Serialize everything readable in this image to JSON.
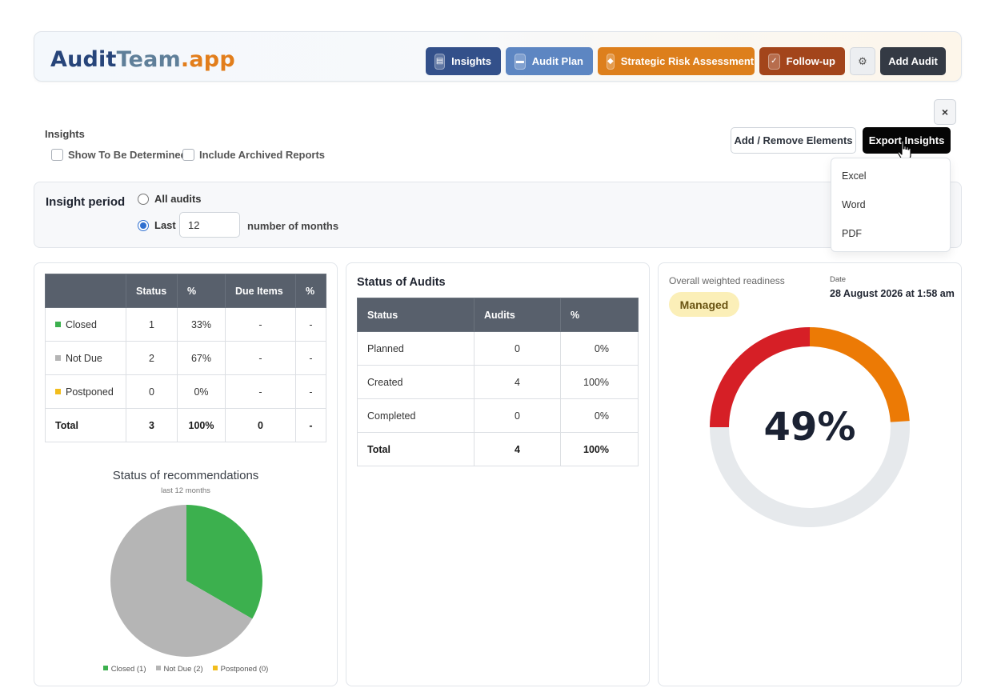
{
  "header": {
    "logo": {
      "part1": "Audit",
      "part2": "Team",
      "part3": ".app"
    },
    "nav": [
      {
        "label": "Insights",
        "icon": "chart-icon",
        "color": "#33508a"
      },
      {
        "label": "Audit Plan",
        "icon": "calendar-icon",
        "color": "#5d86c2"
      },
      {
        "label": "Strategic Risk Assessment",
        "icon": "diamond-icon",
        "color": "#dd7f1c"
      },
      {
        "label": "Follow-up",
        "icon": "check-icon",
        "color": "#a3451b"
      }
    ],
    "settings_icon": "gear-icon",
    "add_audit_label": "Add Audit"
  },
  "toolbar": {
    "section_title": "Insights",
    "close_label": "×",
    "show_tbd_label": "Show To Be Determined",
    "include_archived_label": "Include Archived Reports",
    "add_remove_label": "Add / Remove Elements",
    "export_label": "Export Insights"
  },
  "export_menu": {
    "items": [
      "Excel",
      "Word",
      "PDF"
    ]
  },
  "period": {
    "label": "Insight period",
    "option_all": "All audits",
    "option_last": "Last",
    "months_value": "12",
    "months_suffix": "number of months",
    "selected": "last"
  },
  "recommendations_table": {
    "headers": [
      "",
      "Status",
      "%",
      "Due Items",
      "%"
    ],
    "rows": [
      {
        "label": "Closed",
        "color": "#3cb04e",
        "status": "1",
        "pct": "33%",
        "due": "-",
        "due_pct": "-"
      },
      {
        "label": "Not Due",
        "color": "#b5b5b5",
        "status": "2",
        "pct": "67%",
        "due": "-",
        "due_pct": "-"
      },
      {
        "label": "Postponed",
        "color": "#f2bd1c",
        "status": "0",
        "pct": "0%",
        "due": "-",
        "due_pct": "-"
      }
    ],
    "total": {
      "label": "Total",
      "status": "3",
      "pct": "100%",
      "due": "0",
      "due_pct": "-"
    }
  },
  "recommendations_chart": {
    "title": "Status of recommendations",
    "subtitle": "last 12 months",
    "legend": [
      "Closed (1)",
      "Not Due (2)",
      "Postponed (0)"
    ]
  },
  "chart_data": {
    "type": "pie",
    "title": "Status of recommendations",
    "subtitle": "last 12 months",
    "categories": [
      "Closed",
      "Not Due",
      "Postponed"
    ],
    "values": [
      1,
      2,
      0
    ],
    "colors": [
      "#3cb04e",
      "#b5b5b5",
      "#f2bd1c"
    ],
    "legend_position": "bottom"
  },
  "audits_status": {
    "title": "Status of Audits",
    "headers": [
      "Status",
      "Audits",
      "%"
    ],
    "rows": [
      {
        "status": "Planned",
        "audits": "0",
        "pct": "0%"
      },
      {
        "status": "Created",
        "audits": "4",
        "pct": "100%"
      },
      {
        "status": "Completed",
        "audits": "0",
        "pct": "0%"
      }
    ],
    "total": {
      "status": "Total",
      "audits": "4",
      "pct": "100%"
    }
  },
  "readiness": {
    "label": "Overall weighted readiness",
    "level": "Managed",
    "date_label": "Date",
    "date_value": "28 August 2026 at 1:58 am",
    "percent_text": "49%",
    "percent": 49,
    "colors": {
      "red": "#d61f26",
      "orange": "#ec7a05",
      "track": "#e6e9ec"
    }
  }
}
